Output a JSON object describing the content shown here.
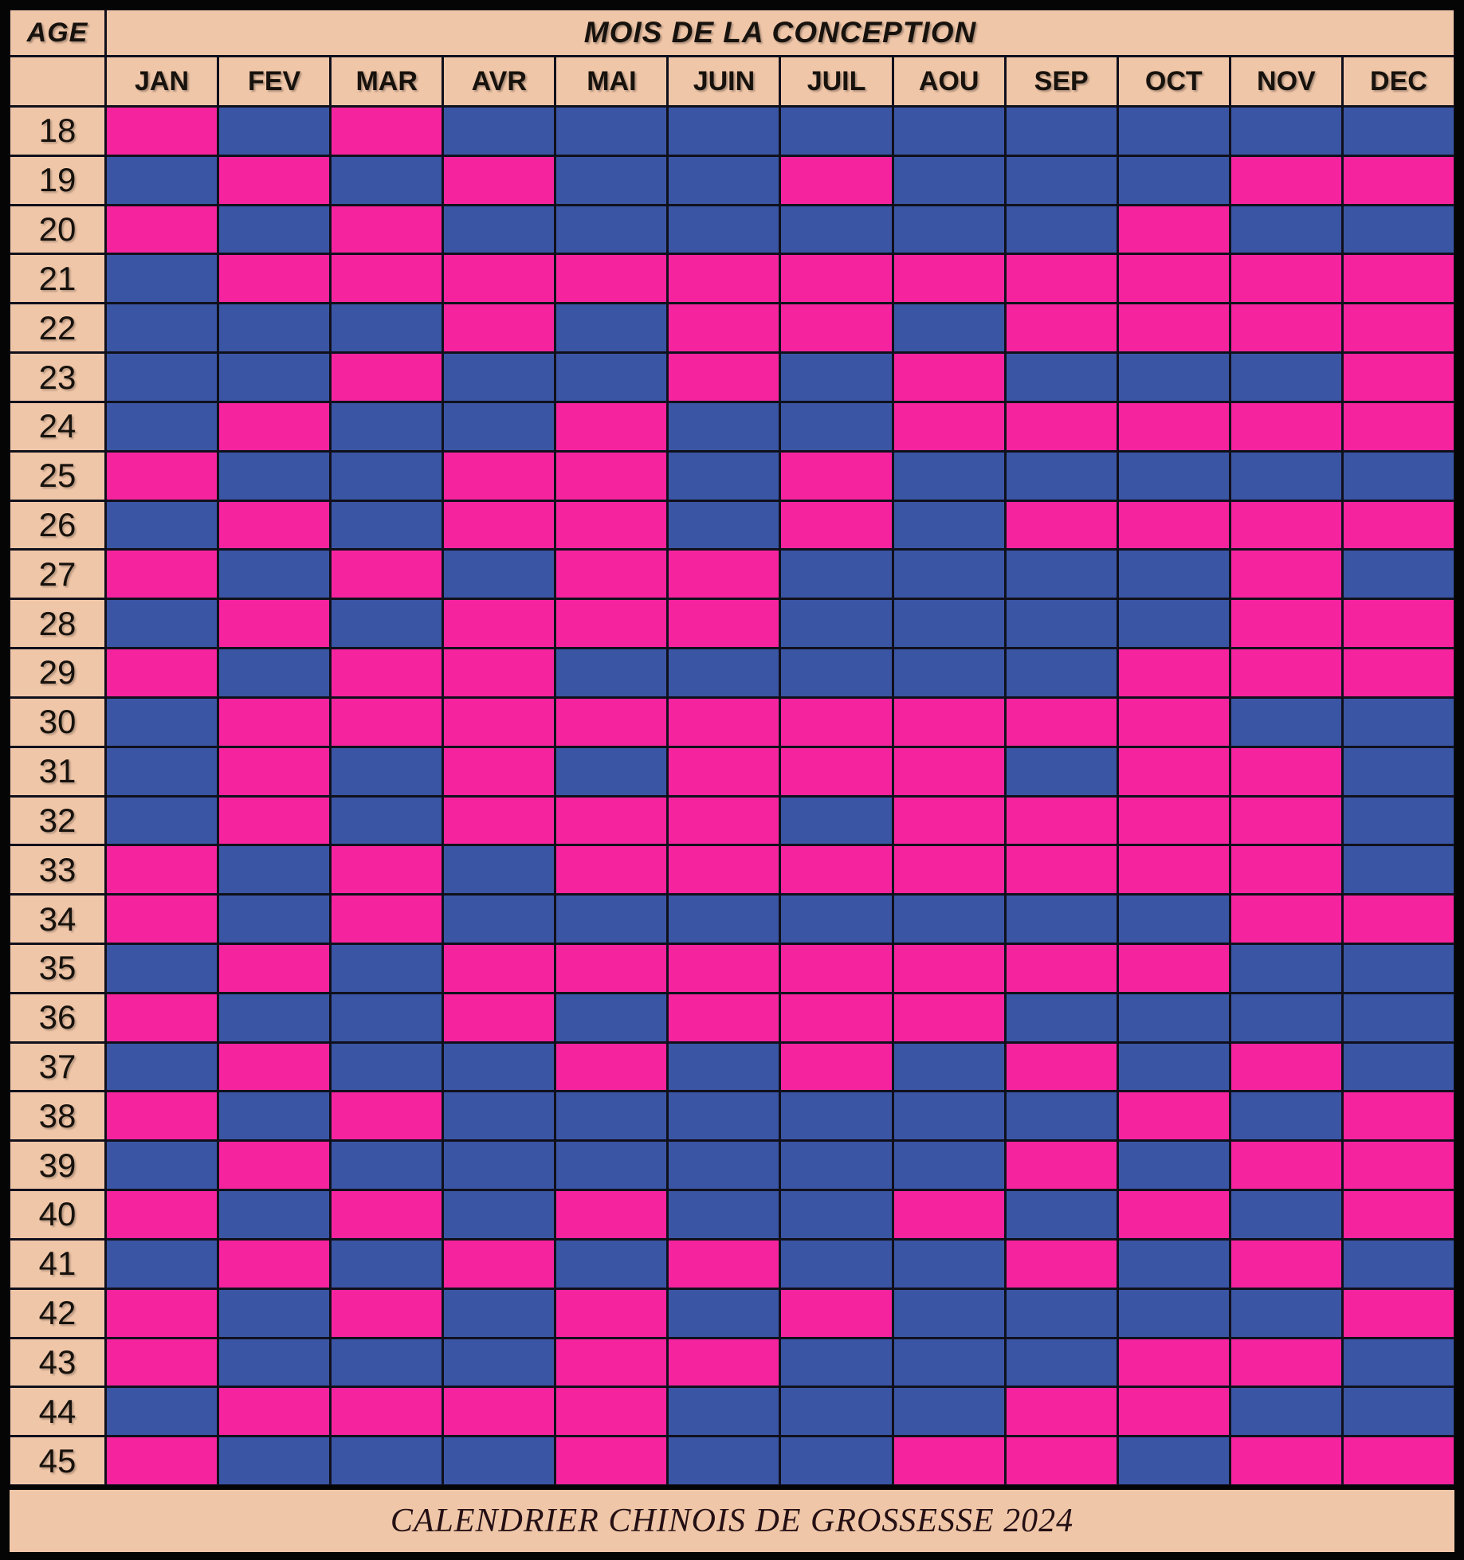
{
  "table": {
    "age_header": "AGE",
    "months_group_header": "MOIS DE LA CONCEPTION",
    "months": [
      "JAN",
      "FEV",
      "MAR",
      "AVR",
      "MAI",
      "JUIN",
      "JUIL",
      "AOU",
      "SEP",
      "OCT",
      "NOV",
      "DEC"
    ],
    "rows": [
      {
        "age": "18",
        "cells": [
          "P",
          "B",
          "P",
          "B",
          "B",
          "B",
          "B",
          "B",
          "B",
          "B",
          "B",
          "B"
        ]
      },
      {
        "age": "19",
        "cells": [
          "B",
          "P",
          "B",
          "P",
          "B",
          "B",
          "P",
          "B",
          "B",
          "B",
          "P",
          "P"
        ]
      },
      {
        "age": "20",
        "cells": [
          "P",
          "B",
          "P",
          "B",
          "B",
          "B",
          "B",
          "B",
          "B",
          "P",
          "B",
          "B"
        ]
      },
      {
        "age": "21",
        "cells": [
          "B",
          "P",
          "P",
          "P",
          "P",
          "P",
          "P",
          "P",
          "P",
          "P",
          "P",
          "P"
        ]
      },
      {
        "age": "22",
        "cells": [
          "B",
          "B",
          "B",
          "P",
          "B",
          "P",
          "P",
          "B",
          "P",
          "P",
          "P",
          "P"
        ]
      },
      {
        "age": "23",
        "cells": [
          "B",
          "B",
          "P",
          "B",
          "B",
          "P",
          "B",
          "P",
          "B",
          "B",
          "B",
          "P"
        ]
      },
      {
        "age": "24",
        "cells": [
          "B",
          "P",
          "B",
          "B",
          "P",
          "B",
          "B",
          "P",
          "P",
          "P",
          "P",
          "P"
        ]
      },
      {
        "age": "25",
        "cells": [
          "P",
          "B",
          "B",
          "P",
          "P",
          "B",
          "P",
          "B",
          "B",
          "B",
          "B",
          "B"
        ]
      },
      {
        "age": "26",
        "cells": [
          "B",
          "P",
          "B",
          "P",
          "P",
          "B",
          "P",
          "B",
          "P",
          "P",
          "P",
          "P"
        ]
      },
      {
        "age": "27",
        "cells": [
          "P",
          "B",
          "P",
          "B",
          "P",
          "P",
          "B",
          "B",
          "B",
          "B",
          "P",
          "B"
        ]
      },
      {
        "age": "28",
        "cells": [
          "B",
          "P",
          "B",
          "P",
          "P",
          "P",
          "B",
          "B",
          "B",
          "B",
          "P",
          "P"
        ]
      },
      {
        "age": "29",
        "cells": [
          "P",
          "B",
          "P",
          "P",
          "B",
          "B",
          "B",
          "B",
          "B",
          "P",
          "P",
          "P"
        ]
      },
      {
        "age": "30",
        "cells": [
          "B",
          "P",
          "P",
          "P",
          "P",
          "P",
          "P",
          "P",
          "P",
          "P",
          "B",
          "B"
        ]
      },
      {
        "age": "31",
        "cells": [
          "B",
          "P",
          "B",
          "P",
          "B",
          "P",
          "P",
          "P",
          "B",
          "P",
          "P",
          "B"
        ]
      },
      {
        "age": "32",
        "cells": [
          "B",
          "P",
          "B",
          "P",
          "P",
          "P",
          "B",
          "P",
          "P",
          "P",
          "P",
          "B"
        ]
      },
      {
        "age": "33",
        "cells": [
          "P",
          "B",
          "P",
          "B",
          "P",
          "P",
          "P",
          "P",
          "P",
          "P",
          "P",
          "B"
        ]
      },
      {
        "age": "34",
        "cells": [
          "P",
          "B",
          "P",
          "B",
          "B",
          "B",
          "B",
          "B",
          "B",
          "B",
          "P",
          "P"
        ]
      },
      {
        "age": "35",
        "cells": [
          "B",
          "P",
          "B",
          "P",
          "P",
          "P",
          "P",
          "P",
          "P",
          "P",
          "B",
          "B"
        ]
      },
      {
        "age": "36",
        "cells": [
          "P",
          "B",
          "B",
          "P",
          "B",
          "P",
          "P",
          "P",
          "B",
          "B",
          "B",
          "B"
        ]
      },
      {
        "age": "37",
        "cells": [
          "B",
          "P",
          "B",
          "B",
          "P",
          "B",
          "P",
          "B",
          "P",
          "B",
          "P",
          "B"
        ]
      },
      {
        "age": "38",
        "cells": [
          "P",
          "B",
          "P",
          "B",
          "B",
          "B",
          "B",
          "B",
          "B",
          "P",
          "B",
          "P"
        ]
      },
      {
        "age": "39",
        "cells": [
          "B",
          "P",
          "B",
          "B",
          "B",
          "B",
          "B",
          "B",
          "P",
          "B",
          "P",
          "P"
        ]
      },
      {
        "age": "40",
        "cells": [
          "P",
          "B",
          "P",
          "B",
          "P",
          "B",
          "B",
          "P",
          "B",
          "P",
          "B",
          "P"
        ]
      },
      {
        "age": "41",
        "cells": [
          "B",
          "P",
          "B",
          "P",
          "B",
          "P",
          "B",
          "B",
          "P",
          "B",
          "P",
          "B"
        ]
      },
      {
        "age": "42",
        "cells": [
          "P",
          "B",
          "P",
          "B",
          "P",
          "B",
          "P",
          "B",
          "B",
          "B",
          "B",
          "P"
        ]
      },
      {
        "age": "43",
        "cells": [
          "P",
          "B",
          "B",
          "B",
          "P",
          "P",
          "B",
          "B",
          "B",
          "P",
          "P",
          "B"
        ]
      },
      {
        "age": "44",
        "cells": [
          "B",
          "P",
          "P",
          "P",
          "P",
          "B",
          "B",
          "B",
          "P",
          "P",
          "B",
          "B"
        ]
      },
      {
        "age": "45",
        "cells": [
          "P",
          "B",
          "B",
          "B",
          "P",
          "B",
          "B",
          "P",
          "P",
          "B",
          "P",
          "P"
        ]
      }
    ]
  },
  "colors": {
    "pink_cell": "#F5249E",
    "blue_cell": "#3A55A3",
    "header_bg": "#F0C6A8",
    "gridline": "#10101C",
    "frame": "#050505"
  },
  "footer": {
    "caption": "CALENDRIER CHINOIS DE GROSSESSE 2024"
  },
  "chart_data": {
    "type": "heatmap",
    "title": "CALENDRIER CHINOIS DE GROSSESSE 2024",
    "xlabel": "MOIS DE LA CONCEPTION",
    "ylabel": "AGE",
    "x_categories": [
      "JAN",
      "FEV",
      "MAR",
      "AVR",
      "MAI",
      "JUIN",
      "JUIL",
      "AOU",
      "SEP",
      "OCT",
      "NOV",
      "DEC"
    ],
    "y_categories": [
      18,
      19,
      20,
      21,
      22,
      23,
      24,
      25,
      26,
      27,
      28,
      29,
      30,
      31,
      32,
      33,
      34,
      35,
      36,
      37,
      38,
      39,
      40,
      41,
      42,
      43,
      44,
      45
    ],
    "cell_values": [
      [
        "P",
        "B",
        "P",
        "B",
        "B",
        "B",
        "B",
        "B",
        "B",
        "B",
        "B",
        "B"
      ],
      [
        "B",
        "P",
        "B",
        "P",
        "B",
        "B",
        "P",
        "B",
        "B",
        "B",
        "P",
        "P"
      ],
      [
        "P",
        "B",
        "P",
        "B",
        "B",
        "B",
        "B",
        "B",
        "B",
        "P",
        "B",
        "B"
      ],
      [
        "B",
        "P",
        "P",
        "P",
        "P",
        "P",
        "P",
        "P",
        "P",
        "P",
        "P",
        "P"
      ],
      [
        "B",
        "B",
        "B",
        "P",
        "B",
        "P",
        "P",
        "B",
        "P",
        "P",
        "P",
        "P"
      ],
      [
        "B",
        "B",
        "P",
        "B",
        "B",
        "P",
        "B",
        "P",
        "B",
        "B",
        "B",
        "P"
      ],
      [
        "B",
        "P",
        "B",
        "B",
        "P",
        "B",
        "B",
        "P",
        "P",
        "P",
        "P",
        "P"
      ],
      [
        "P",
        "B",
        "B",
        "P",
        "P",
        "B",
        "P",
        "B",
        "B",
        "B",
        "B",
        "B"
      ],
      [
        "B",
        "P",
        "B",
        "P",
        "P",
        "B",
        "P",
        "B",
        "P",
        "P",
        "P",
        "P"
      ],
      [
        "P",
        "B",
        "P",
        "B",
        "P",
        "P",
        "B",
        "B",
        "B",
        "B",
        "P",
        "B"
      ],
      [
        "B",
        "P",
        "B",
        "P",
        "P",
        "P",
        "B",
        "B",
        "B",
        "B",
        "P",
        "P"
      ],
      [
        "P",
        "B",
        "P",
        "P",
        "B",
        "B",
        "B",
        "B",
        "B",
        "P",
        "P",
        "P"
      ],
      [
        "B",
        "P",
        "P",
        "P",
        "P",
        "P",
        "P",
        "P",
        "P",
        "P",
        "B",
        "B"
      ],
      [
        "B",
        "P",
        "B",
        "P",
        "B",
        "P",
        "P",
        "P",
        "B",
        "P",
        "P",
        "B"
      ],
      [
        "B",
        "P",
        "B",
        "P",
        "P",
        "P",
        "B",
        "P",
        "P",
        "P",
        "P",
        "B"
      ],
      [
        "P",
        "B",
        "P",
        "B",
        "P",
        "P",
        "P",
        "P",
        "P",
        "P",
        "P",
        "B"
      ],
      [
        "P",
        "B",
        "P",
        "B",
        "B",
        "B",
        "B",
        "B",
        "B",
        "B",
        "P",
        "P"
      ],
      [
        "B",
        "P",
        "B",
        "P",
        "P",
        "P",
        "P",
        "P",
        "P",
        "P",
        "B",
        "B"
      ],
      [
        "P",
        "B",
        "B",
        "P",
        "B",
        "P",
        "P",
        "P",
        "B",
        "B",
        "B",
        "B"
      ],
      [
        "B",
        "P",
        "B",
        "B",
        "P",
        "B",
        "P",
        "B",
        "P",
        "B",
        "P",
        "B"
      ],
      [
        "P",
        "B",
        "P",
        "B",
        "B",
        "B",
        "B",
        "B",
        "B",
        "P",
        "B",
        "P"
      ],
      [
        "B",
        "P",
        "B",
        "B",
        "B",
        "B",
        "B",
        "B",
        "P",
        "B",
        "P",
        "P"
      ],
      [
        "P",
        "B",
        "P",
        "B",
        "P",
        "B",
        "B",
        "P",
        "B",
        "P",
        "B",
        "P"
      ],
      [
        "B",
        "P",
        "B",
        "P",
        "B",
        "P",
        "B",
        "B",
        "P",
        "B",
        "P",
        "B"
      ],
      [
        "P",
        "B",
        "P",
        "B",
        "P",
        "B",
        "P",
        "B",
        "B",
        "B",
        "B",
        "P"
      ],
      [
        "P",
        "B",
        "B",
        "B",
        "P",
        "P",
        "B",
        "B",
        "B",
        "P",
        "P",
        "B"
      ],
      [
        "B",
        "P",
        "P",
        "P",
        "P",
        "B",
        "B",
        "B",
        "P",
        "P",
        "B",
        "B"
      ],
      [
        "P",
        "B",
        "B",
        "B",
        "P",
        "B",
        "B",
        "P",
        "P",
        "B",
        "P",
        "P"
      ]
    ],
    "value_colors": {
      "P": "#F5249E",
      "B": "#3A55A3"
    },
    "legend_position": "none",
    "grid": true
  }
}
